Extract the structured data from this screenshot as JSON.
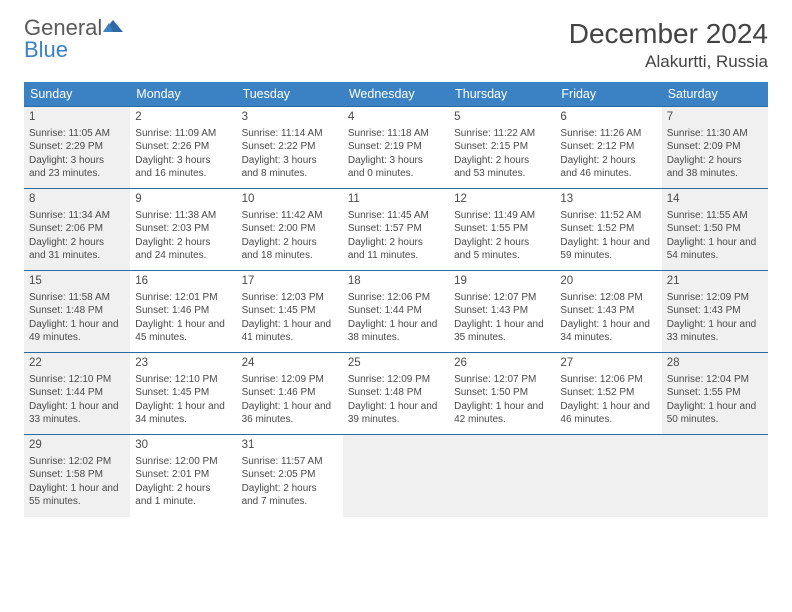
{
  "logo": {
    "general": "General",
    "blue": "Blue"
  },
  "title": "December 2024",
  "location": "Alakurtti, Russia",
  "colors": {
    "header_bg": "#3b82c4",
    "row_border": "#2d6aa3",
    "shaded": "#f0f0f0",
    "text": "#4a4a4a",
    "logo_gray": "#5a5a5a",
    "logo_blue": "#3b82c4"
  },
  "weekdays": [
    "Sunday",
    "Monday",
    "Tuesday",
    "Wednesday",
    "Thursday",
    "Friday",
    "Saturday"
  ],
  "weeks": [
    [
      {
        "n": "1",
        "shaded": true,
        "sunrise": "Sunrise: 11:05 AM",
        "sunset": "Sunset: 2:29 PM",
        "d1": "Daylight: 3 hours",
        "d2": "and 23 minutes."
      },
      {
        "n": "2",
        "shaded": false,
        "sunrise": "Sunrise: 11:09 AM",
        "sunset": "Sunset: 2:26 PM",
        "d1": "Daylight: 3 hours",
        "d2": "and 16 minutes."
      },
      {
        "n": "3",
        "shaded": false,
        "sunrise": "Sunrise: 11:14 AM",
        "sunset": "Sunset: 2:22 PM",
        "d1": "Daylight: 3 hours",
        "d2": "and 8 minutes."
      },
      {
        "n": "4",
        "shaded": false,
        "sunrise": "Sunrise: 11:18 AM",
        "sunset": "Sunset: 2:19 PM",
        "d1": "Daylight: 3 hours",
        "d2": "and 0 minutes."
      },
      {
        "n": "5",
        "shaded": false,
        "sunrise": "Sunrise: 11:22 AM",
        "sunset": "Sunset: 2:15 PM",
        "d1": "Daylight: 2 hours",
        "d2": "and 53 minutes."
      },
      {
        "n": "6",
        "shaded": false,
        "sunrise": "Sunrise: 11:26 AM",
        "sunset": "Sunset: 2:12 PM",
        "d1": "Daylight: 2 hours",
        "d2": "and 46 minutes."
      },
      {
        "n": "7",
        "shaded": true,
        "sunrise": "Sunrise: 11:30 AM",
        "sunset": "Sunset: 2:09 PM",
        "d1": "Daylight: 2 hours",
        "d2": "and 38 minutes."
      }
    ],
    [
      {
        "n": "8",
        "shaded": true,
        "sunrise": "Sunrise: 11:34 AM",
        "sunset": "Sunset: 2:06 PM",
        "d1": "Daylight: 2 hours",
        "d2": "and 31 minutes."
      },
      {
        "n": "9",
        "shaded": false,
        "sunrise": "Sunrise: 11:38 AM",
        "sunset": "Sunset: 2:03 PM",
        "d1": "Daylight: 2 hours",
        "d2": "and 24 minutes."
      },
      {
        "n": "10",
        "shaded": false,
        "sunrise": "Sunrise: 11:42 AM",
        "sunset": "Sunset: 2:00 PM",
        "d1": "Daylight: 2 hours",
        "d2": "and 18 minutes."
      },
      {
        "n": "11",
        "shaded": false,
        "sunrise": "Sunrise: 11:45 AM",
        "sunset": "Sunset: 1:57 PM",
        "d1": "Daylight: 2 hours",
        "d2": "and 11 minutes."
      },
      {
        "n": "12",
        "shaded": false,
        "sunrise": "Sunrise: 11:49 AM",
        "sunset": "Sunset: 1:55 PM",
        "d1": "Daylight: 2 hours",
        "d2": "and 5 minutes."
      },
      {
        "n": "13",
        "shaded": false,
        "sunrise": "Sunrise: 11:52 AM",
        "sunset": "Sunset: 1:52 PM",
        "d1": "Daylight: 1 hour and",
        "d2": "59 minutes."
      },
      {
        "n": "14",
        "shaded": true,
        "sunrise": "Sunrise: 11:55 AM",
        "sunset": "Sunset: 1:50 PM",
        "d1": "Daylight: 1 hour and",
        "d2": "54 minutes."
      }
    ],
    [
      {
        "n": "15",
        "shaded": true,
        "sunrise": "Sunrise: 11:58 AM",
        "sunset": "Sunset: 1:48 PM",
        "d1": "Daylight: 1 hour and",
        "d2": "49 minutes."
      },
      {
        "n": "16",
        "shaded": false,
        "sunrise": "Sunrise: 12:01 PM",
        "sunset": "Sunset: 1:46 PM",
        "d1": "Daylight: 1 hour and",
        "d2": "45 minutes."
      },
      {
        "n": "17",
        "shaded": false,
        "sunrise": "Sunrise: 12:03 PM",
        "sunset": "Sunset: 1:45 PM",
        "d1": "Daylight: 1 hour and",
        "d2": "41 minutes."
      },
      {
        "n": "18",
        "shaded": false,
        "sunrise": "Sunrise: 12:06 PM",
        "sunset": "Sunset: 1:44 PM",
        "d1": "Daylight: 1 hour and",
        "d2": "38 minutes."
      },
      {
        "n": "19",
        "shaded": false,
        "sunrise": "Sunrise: 12:07 PM",
        "sunset": "Sunset: 1:43 PM",
        "d1": "Daylight: 1 hour and",
        "d2": "35 minutes."
      },
      {
        "n": "20",
        "shaded": false,
        "sunrise": "Sunrise: 12:08 PM",
        "sunset": "Sunset: 1:43 PM",
        "d1": "Daylight: 1 hour and",
        "d2": "34 minutes."
      },
      {
        "n": "21",
        "shaded": true,
        "sunrise": "Sunrise: 12:09 PM",
        "sunset": "Sunset: 1:43 PM",
        "d1": "Daylight: 1 hour and",
        "d2": "33 minutes."
      }
    ],
    [
      {
        "n": "22",
        "shaded": true,
        "sunrise": "Sunrise: 12:10 PM",
        "sunset": "Sunset: 1:44 PM",
        "d1": "Daylight: 1 hour and",
        "d2": "33 minutes."
      },
      {
        "n": "23",
        "shaded": false,
        "sunrise": "Sunrise: 12:10 PM",
        "sunset": "Sunset: 1:45 PM",
        "d1": "Daylight: 1 hour and",
        "d2": "34 minutes."
      },
      {
        "n": "24",
        "shaded": false,
        "sunrise": "Sunrise: 12:09 PM",
        "sunset": "Sunset: 1:46 PM",
        "d1": "Daylight: 1 hour and",
        "d2": "36 minutes."
      },
      {
        "n": "25",
        "shaded": false,
        "sunrise": "Sunrise: 12:09 PM",
        "sunset": "Sunset: 1:48 PM",
        "d1": "Daylight: 1 hour and",
        "d2": "39 minutes."
      },
      {
        "n": "26",
        "shaded": false,
        "sunrise": "Sunrise: 12:07 PM",
        "sunset": "Sunset: 1:50 PM",
        "d1": "Daylight: 1 hour and",
        "d2": "42 minutes."
      },
      {
        "n": "27",
        "shaded": false,
        "sunrise": "Sunrise: 12:06 PM",
        "sunset": "Sunset: 1:52 PM",
        "d1": "Daylight: 1 hour and",
        "d2": "46 minutes."
      },
      {
        "n": "28",
        "shaded": true,
        "sunrise": "Sunrise: 12:04 PM",
        "sunset": "Sunset: 1:55 PM",
        "d1": "Daylight: 1 hour and",
        "d2": "50 minutes."
      }
    ],
    [
      {
        "n": "29",
        "shaded": true,
        "sunrise": "Sunrise: 12:02 PM",
        "sunset": "Sunset: 1:58 PM",
        "d1": "Daylight: 1 hour and",
        "d2": "55 minutes."
      },
      {
        "n": "30",
        "shaded": false,
        "sunrise": "Sunrise: 12:00 PM",
        "sunset": "Sunset: 2:01 PM",
        "d1": "Daylight: 2 hours",
        "d2": "and 1 minute."
      },
      {
        "n": "31",
        "shaded": false,
        "sunrise": "Sunrise: 11:57 AM",
        "sunset": "Sunset: 2:05 PM",
        "d1": "Daylight: 2 hours",
        "d2": "and 7 minutes."
      },
      {
        "empty": true
      },
      {
        "empty": true
      },
      {
        "empty": true
      },
      {
        "empty": true
      }
    ]
  ]
}
